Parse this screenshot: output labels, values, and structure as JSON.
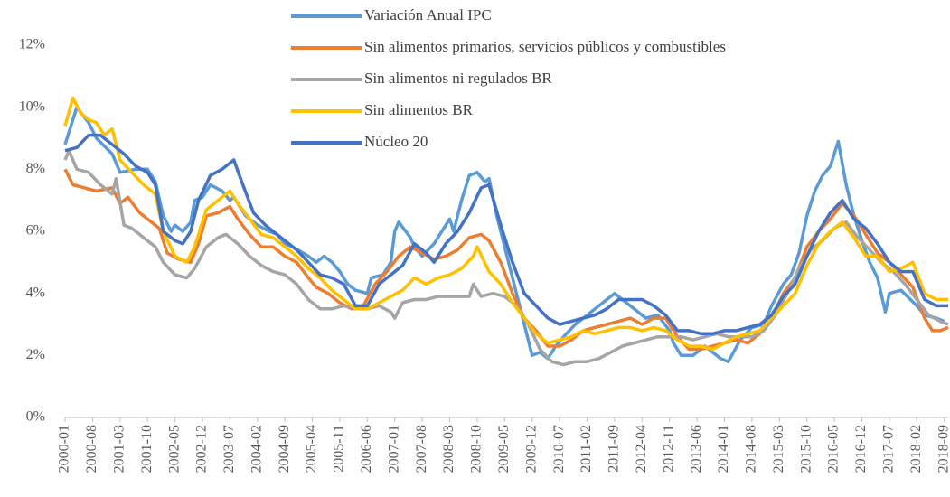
{
  "chart_data": {
    "type": "line",
    "xlim": [
      "2000-01",
      "2018-10"
    ],
    "xticks": [
      "2000-01",
      "2000-08",
      "2001-03",
      "2001-10",
      "2002-05",
      "2002-12",
      "2003-07",
      "2004-02",
      "2004-09",
      "2005-04",
      "2005-11",
      "2006-06",
      "2007-01",
      "2007-08",
      "2008-03",
      "2008-10",
      "2009-05",
      "2009-12",
      "2010-07",
      "2011-02",
      "2011-09",
      "2012-04",
      "2012-11",
      "2013-06",
      "2014-01",
      "2014-08",
      "2015-03",
      "2015-10",
      "2016-05",
      "2016-12",
      "2017-07",
      "2018-02",
      "2018-09"
    ],
    "ylim": [
      0,
      12
    ],
    "yticks": [
      {
        "value": 0,
        "label": "0%"
      },
      {
        "value": 2,
        "label": "2%"
      },
      {
        "value": 4,
        "label": "4%"
      },
      {
        "value": 6,
        "label": "6%"
      },
      {
        "value": 8,
        "label": "8%"
      },
      {
        "value": 10,
        "label": "10%"
      },
      {
        "value": 12,
        "label": "12%"
      }
    ],
    "grid": false,
    "legend": "top",
    "series": [
      {
        "name": "Variación Anual IPC",
        "color": "#5b9bd5",
        "x": [
          "2000-01",
          "2000-04",
          "2000-07",
          "2000-09",
          "2001-01",
          "2001-03",
          "2001-07",
          "2001-10",
          "2001-12",
          "2002-02",
          "2002-04",
          "2002-05",
          "2002-07",
          "2002-09",
          "2002-10",
          "2002-12",
          "2003-02",
          "2003-05",
          "2003-07",
          "2003-08",
          "2003-11",
          "2004-02",
          "2004-05",
          "2004-07",
          "2004-09",
          "2004-11",
          "2005-03",
          "2005-05",
          "2005-07",
          "2005-09",
          "2005-11",
          "2006-01",
          "2006-03",
          "2006-06",
          "2006-07",
          "2006-10",
          "2006-12",
          "2007-01",
          "2007-02",
          "2007-05",
          "2007-06",
          "2007-08",
          "2007-11",
          "2008-03",
          "2008-04",
          "2008-06",
          "2008-08",
          "2008-10",
          "2008-12",
          "2009-01",
          "2009-03",
          "2009-05",
          "2009-07",
          "2009-09",
          "2009-11",
          "2009-12",
          "2010-02",
          "2010-04",
          "2010-06",
          "2010-08",
          "2010-11",
          "2011-02",
          "2011-03",
          "2011-06",
          "2011-09",
          "2011-11",
          "2012-02",
          "2012-05",
          "2012-08",
          "2012-11",
          "2012-12",
          "2013-02",
          "2013-05",
          "2013-08",
          "2013-12",
          "2014-02",
          "2014-05",
          "2014-08",
          "2014-11",
          "2015-01",
          "2015-04",
          "2015-06",
          "2015-08",
          "2015-10",
          "2015-12",
          "2016-02",
          "2016-04",
          "2016-06",
          "2016-08",
          "2016-10",
          "2016-12",
          "2017-02",
          "2017-04",
          "2017-06",
          "2017-07",
          "2017-10",
          "2018-02",
          "2018-04",
          "2018-07",
          "2018-09"
        ],
        "values": [
          8.8,
          10.0,
          9.5,
          9.0,
          8.5,
          7.9,
          8.0,
          8.0,
          7.6,
          6.5,
          6.0,
          6.2,
          6.0,
          6.3,
          7.0,
          7.1,
          7.5,
          7.3,
          7.0,
          7.1,
          6.5,
          6.2,
          6.0,
          5.9,
          5.6,
          5.5,
          5.2,
          5.0,
          5.2,
          5.0,
          4.7,
          4.3,
          4.1,
          4.0,
          4.5,
          4.6,
          5.0,
          6.0,
          6.3,
          5.8,
          5.5,
          5.2,
          5.6,
          6.4,
          6.0,
          7.0,
          7.8,
          7.9,
          7.6,
          7.7,
          6.5,
          5.5,
          4.5,
          3.5,
          2.5,
          2.0,
          2.1,
          1.9,
          2.3,
          2.6,
          3.0,
          3.3,
          3.4,
          3.7,
          4.0,
          3.8,
          3.5,
          3.2,
          3.3,
          2.8,
          2.4,
          2.0,
          2.0,
          2.3,
          1.9,
          1.8,
          2.5,
          2.9,
          3.0,
          3.6,
          4.3,
          4.6,
          5.3,
          6.5,
          7.3,
          7.8,
          8.1,
          8.9,
          7.5,
          6.5,
          5.7,
          5.0,
          4.5,
          3.4,
          4.0,
          4.1,
          3.6,
          3.3,
          3.2,
          3.1
        ]
      },
      {
        "name": "Sin alimentos primarios, servicios públicos y combustibles",
        "color": "#ed7d31",
        "x": [
          "2000-01",
          "2000-03",
          "2000-06",
          "2000-09",
          "2001-01",
          "2001-03",
          "2001-05",
          "2001-08",
          "2001-11",
          "2002-01",
          "2002-03",
          "2002-06",
          "2002-09",
          "2002-11",
          "2003-01",
          "2003-04",
          "2003-07",
          "2003-09",
          "2003-12",
          "2004-03",
          "2004-06",
          "2004-09",
          "2004-12",
          "2005-03",
          "2005-05",
          "2005-08",
          "2005-11",
          "2006-02",
          "2006-05",
          "2006-08",
          "2006-11",
          "2007-02",
          "2007-05",
          "2007-08",
          "2007-11",
          "2008-02",
          "2008-05",
          "2008-08",
          "2008-11",
          "2009-01",
          "2009-04",
          "2009-07",
          "2009-10",
          "2010-01",
          "2010-04",
          "2010-07",
          "2010-10",
          "2011-01",
          "2011-04",
          "2011-07",
          "2011-10",
          "2012-01",
          "2012-04",
          "2012-07",
          "2012-10",
          "2013-01",
          "2013-04",
          "2013-07",
          "2013-10",
          "2014-01",
          "2014-04",
          "2014-07",
          "2014-10",
          "2015-01",
          "2015-04",
          "2015-07",
          "2015-10",
          "2016-01",
          "2016-04",
          "2016-07",
          "2016-10",
          "2017-01",
          "2017-04",
          "2017-07",
          "2017-10",
          "2018-01",
          "2018-04",
          "2018-06",
          "2018-08",
          "2018-10"
        ],
        "values": [
          8.0,
          7.5,
          7.4,
          7.3,
          7.4,
          6.9,
          7.1,
          6.6,
          6.3,
          6.1,
          5.3,
          5.1,
          5.0,
          5.6,
          6.5,
          6.6,
          6.8,
          6.4,
          5.9,
          5.5,
          5.5,
          5.2,
          5.0,
          4.5,
          4.2,
          4.0,
          3.7,
          3.5,
          3.6,
          4.3,
          4.7,
          5.2,
          5.5,
          5.3,
          5.1,
          5.2,
          5.4,
          5.8,
          5.9,
          5.7,
          5.0,
          4.0,
          3.2,
          2.8,
          2.3,
          2.3,
          2.5,
          2.8,
          2.9,
          3.0,
          3.1,
          3.2,
          3.0,
          3.2,
          3.2,
          2.6,
          2.2,
          2.2,
          2.3,
          2.4,
          2.5,
          2.4,
          2.7,
          3.2,
          4.0,
          4.5,
          5.5,
          6.0,
          6.4,
          6.9,
          6.5,
          5.9,
          5.3,
          5.0,
          4.6,
          4.2,
          3.2,
          2.8,
          2.8,
          2.9
        ]
      },
      {
        "name": "Sin alimentos ni regulados BR",
        "color": "#a5a5a5",
        "x": [
          "2000-01",
          "2000-02",
          "2000-04",
          "2000-07",
          "2000-10",
          "2001-01",
          "2001-02",
          "2001-04",
          "2001-06",
          "2001-09",
          "2001-12",
          "2002-02",
          "2002-05",
          "2002-08",
          "2002-10",
          "2003-01",
          "2003-04",
          "2003-06",
          "2003-09",
          "2003-12",
          "2004-03",
          "2004-06",
          "2004-09",
          "2004-12",
          "2005-03",
          "2005-06",
          "2005-09",
          "2005-12",
          "2006-03",
          "2006-06",
          "2006-09",
          "2006-12",
          "2007-01",
          "2007-03",
          "2007-06",
          "2007-09",
          "2007-12",
          "2008-03",
          "2008-06",
          "2008-08",
          "2008-09",
          "2008-11",
          "2009-02",
          "2009-05",
          "2009-08",
          "2009-11",
          "2010-02",
          "2010-05",
          "2010-08",
          "2010-11",
          "2011-02",
          "2011-05",
          "2011-08",
          "2011-11",
          "2012-02",
          "2012-05",
          "2012-08",
          "2012-11",
          "2013-02",
          "2013-05",
          "2013-08",
          "2013-11",
          "2014-02",
          "2014-05",
          "2014-08",
          "2014-11",
          "2015-02",
          "2015-05",
          "2015-08",
          "2015-11",
          "2016-02",
          "2016-05",
          "2016-08",
          "2016-11",
          "2017-02",
          "2017-05",
          "2017-08",
          "2017-11",
          "2018-02",
          "2018-05",
          "2018-08",
          "2018-10"
        ],
        "values": [
          8.3,
          8.6,
          8.0,
          7.9,
          7.5,
          7.2,
          7.7,
          6.2,
          6.1,
          5.8,
          5.5,
          5.0,
          4.6,
          4.5,
          4.8,
          5.5,
          5.8,
          5.9,
          5.6,
          5.2,
          4.9,
          4.7,
          4.6,
          4.3,
          3.8,
          3.5,
          3.5,
          3.6,
          3.5,
          3.5,
          3.6,
          3.4,
          3.2,
          3.7,
          3.8,
          3.8,
          3.9,
          3.9,
          3.9,
          3.9,
          4.3,
          3.9,
          4.0,
          3.9,
          3.6,
          3.0,
          2.2,
          1.8,
          1.7,
          1.8,
          1.8,
          1.9,
          2.1,
          2.3,
          2.4,
          2.5,
          2.6,
          2.6,
          2.6,
          2.5,
          2.6,
          2.7,
          2.6,
          2.6,
          2.6,
          2.8,
          3.3,
          4.0,
          4.8,
          5.4,
          5.7,
          6.1,
          6.3,
          5.8,
          5.4,
          5.0,
          4.7,
          4.3,
          3.8,
          3.3,
          3.1,
          3.0
        ]
      },
      {
        "name": "Sin alimentos BR",
        "color": "#ffc000",
        "x": [
          "2000-01",
          "2000-03",
          "2000-05",
          "2000-07",
          "2000-09",
          "2000-11",
          "2001-01",
          "2001-03",
          "2001-06",
          "2001-09",
          "2001-12",
          "2002-02",
          "2002-05",
          "2002-08",
          "2002-10",
          "2003-01",
          "2003-04",
          "2003-07",
          "2003-09",
          "2003-12",
          "2004-03",
          "2004-06",
          "2004-09",
          "2004-12",
          "2005-03",
          "2005-06",
          "2005-09",
          "2005-12",
          "2006-03",
          "2006-06",
          "2006-09",
          "2006-12",
          "2007-03",
          "2007-06",
          "2007-09",
          "2007-12",
          "2008-03",
          "2008-06",
          "2008-09",
          "2008-10",
          "2009-01",
          "2009-04",
          "2009-07",
          "2009-10",
          "2010-01",
          "2010-04",
          "2010-07",
          "2010-10",
          "2011-01",
          "2011-04",
          "2011-07",
          "2011-10",
          "2012-01",
          "2012-04",
          "2012-07",
          "2012-10",
          "2013-01",
          "2013-04",
          "2013-07",
          "2013-10",
          "2014-01",
          "2014-04",
          "2014-07",
          "2014-10",
          "2015-01",
          "2015-04",
          "2015-07",
          "2015-10",
          "2016-01",
          "2016-04",
          "2016-07",
          "2016-10",
          "2017-01",
          "2017-04",
          "2017-07",
          "2017-10",
          "2018-01",
          "2018-04",
          "2018-07",
          "2018-10"
        ],
        "values": [
          9.4,
          10.3,
          9.8,
          9.6,
          9.5,
          9.1,
          9.3,
          8.3,
          7.9,
          7.5,
          7.2,
          6.0,
          5.2,
          5.0,
          5.5,
          6.7,
          7.0,
          7.3,
          6.9,
          6.4,
          5.9,
          5.8,
          5.5,
          5.2,
          4.8,
          4.5,
          4.1,
          3.8,
          3.5,
          3.5,
          3.7,
          3.9,
          4.1,
          4.5,
          4.3,
          4.5,
          4.6,
          4.8,
          5.2,
          5.5,
          4.7,
          4.3,
          3.7,
          3.2,
          2.7,
          2.4,
          2.5,
          2.6,
          2.8,
          2.7,
          2.8,
          2.9,
          2.9,
          2.8,
          2.9,
          2.8,
          2.5,
          2.3,
          2.3,
          2.2,
          2.4,
          2.6,
          2.7,
          2.8,
          3.2,
          3.6,
          4.0,
          4.9,
          5.6,
          6.0,
          6.3,
          5.8,
          5.2,
          5.2,
          4.7,
          4.8,
          5.0,
          4.0,
          3.8,
          3.8
        ]
      },
      {
        "name": "Núcleo 20",
        "color": "#4472c4",
        "x": [
          "2000-01",
          "2000-04",
          "2000-07",
          "2000-10",
          "2001-01",
          "2001-04",
          "2001-07",
          "2001-10",
          "2001-12",
          "2002-02",
          "2002-05",
          "2002-07",
          "2002-09",
          "2002-11",
          "2003-02",
          "2003-05",
          "2003-08",
          "2003-10",
          "2004-01",
          "2004-04",
          "2004-06",
          "2004-09",
          "2004-12",
          "2005-03",
          "2005-06",
          "2005-09",
          "2005-12",
          "2006-03",
          "2006-06",
          "2006-09",
          "2006-12",
          "2007-03",
          "2007-06",
          "2007-09",
          "2007-11",
          "2008-02",
          "2008-05",
          "2008-08",
          "2008-11",
          "2009-01",
          "2009-04",
          "2009-07",
          "2009-10",
          "2010-01",
          "2010-04",
          "2010-07",
          "2010-10",
          "2011-01",
          "2011-04",
          "2011-07",
          "2011-10",
          "2012-01",
          "2012-04",
          "2012-07",
          "2012-10",
          "2013-01",
          "2013-04",
          "2013-07",
          "2013-10",
          "2014-01",
          "2014-04",
          "2014-07",
          "2014-10",
          "2015-01",
          "2015-04",
          "2015-07",
          "2015-10",
          "2016-01",
          "2016-04",
          "2016-07",
          "2016-10",
          "2017-01",
          "2017-04",
          "2017-07",
          "2017-10",
          "2018-01",
          "2018-04",
          "2018-07",
          "2018-10"
        ],
        "values": [
          8.6,
          8.7,
          9.1,
          9.1,
          8.8,
          8.5,
          8.1,
          7.9,
          7.5,
          6.0,
          5.7,
          5.6,
          6.0,
          7.0,
          7.8,
          8.0,
          8.3,
          7.6,
          6.6,
          6.2,
          6.0,
          5.7,
          5.4,
          5.0,
          4.6,
          4.5,
          4.3,
          3.6,
          3.6,
          4.3,
          4.6,
          4.9,
          5.6,
          5.3,
          5.0,
          5.6,
          6.0,
          6.6,
          7.4,
          7.5,
          6.2,
          5.0,
          4.0,
          3.6,
          3.2,
          3.0,
          3.1,
          3.2,
          3.3,
          3.5,
          3.8,
          3.8,
          3.8,
          3.6,
          3.3,
          2.8,
          2.8,
          2.7,
          2.7,
          2.8,
          2.8,
          2.9,
          3.0,
          3.3,
          3.9,
          4.3,
          5.2,
          6.0,
          6.6,
          7.0,
          6.4,
          6.1,
          5.6,
          5.0,
          4.7,
          4.7,
          3.8,
          3.6,
          3.6
        ]
      }
    ]
  }
}
